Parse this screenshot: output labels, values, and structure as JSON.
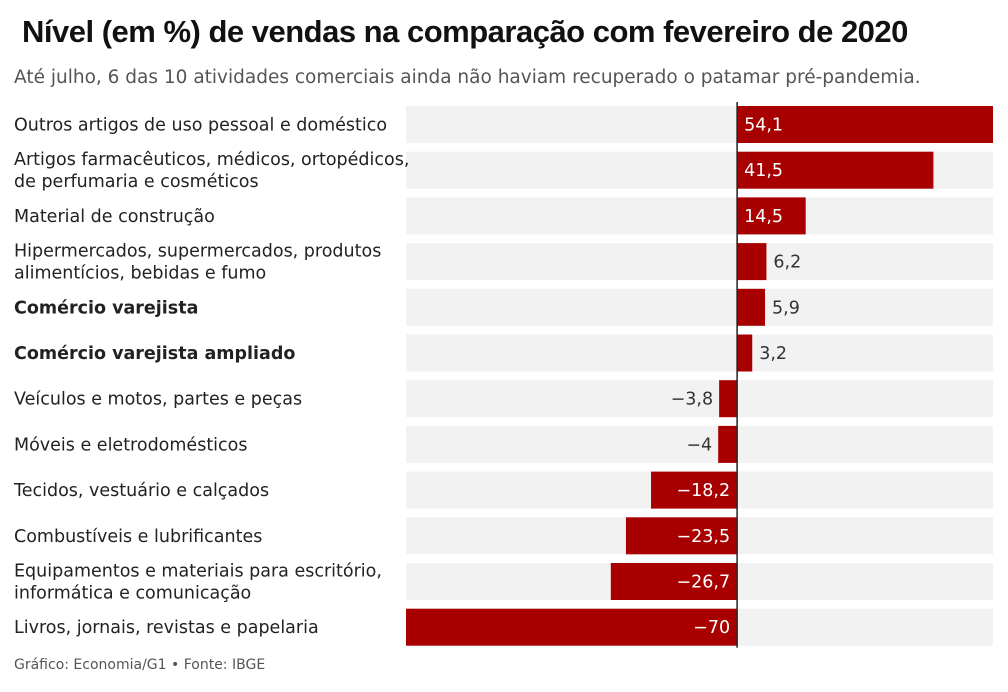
{
  "chart_data": {
    "type": "bar",
    "orientation": "horizontal",
    "title": "Nível (em %) de vendas na comparação com fevereiro de 2020",
    "subtitle": "Até julho, 6 das 10 atividades comerciais ainda não haviam recuperado o patamar pré-pandemia.",
    "xlim": [
      -70,
      54.1
    ],
    "categories": [
      [
        "Outros artigos de uso pessoal e doméstico"
      ],
      [
        "Artigos farmacêuticos, médicos, ortopédicos,",
        "de perfumaria e cosméticos"
      ],
      [
        "Material de construção"
      ],
      [
        "Hipermercados, supermercados, produtos",
        "alimentícios, bebidas e fumo"
      ],
      [
        "Comércio varejista"
      ],
      [
        "Comércio varejista ampliado"
      ],
      [
        "Veículos e motos, partes e peças"
      ],
      [
        "Móveis e eletrodomésticos"
      ],
      [
        "Tecidos, vestuário e calçados"
      ],
      [
        "Combustíveis e lubrificantes"
      ],
      [
        "Equipamentos e materiais para escritório,",
        "informática e comunicação"
      ],
      [
        "Livros, jornais, revistas e papelaria"
      ]
    ],
    "bold_categories": [
      4,
      5
    ],
    "values": [
      54.1,
      41.5,
      14.5,
      6.2,
      5.9,
      3.2,
      -3.8,
      -4,
      -18.2,
      -23.5,
      -26.7,
      -70
    ],
    "value_labels": [
      "54,1",
      "41,5",
      "14,5",
      "6,2",
      "5,9",
      "3,2",
      "−3,8",
      "−4",
      "−18,2",
      "−23,5",
      "−26,7",
      "−70"
    ]
  },
  "colors": {
    "bar": "#a80000",
    "track": "#f2f2f2",
    "zero_line": "#222222",
    "label_inside": "#ffffff",
    "label_outside": "#333333"
  },
  "footer": "Gráfico: Economia/G1 • Fonte: IBGE"
}
